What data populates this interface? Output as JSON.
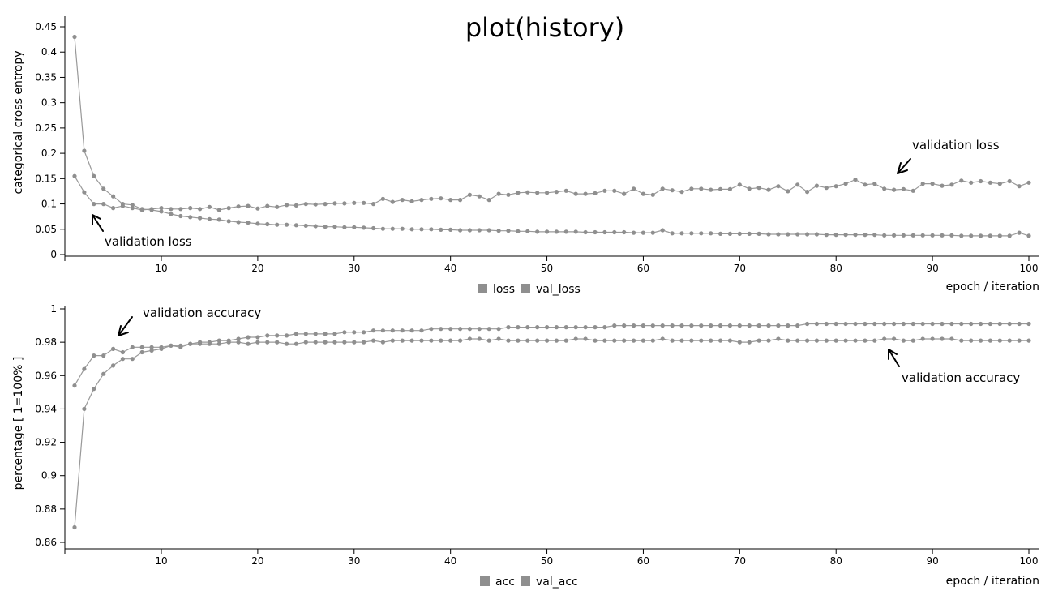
{
  "title": "plot(history)",
  "chart_data": [
    {
      "type": "line",
      "ylabel": "categorical cross entropy",
      "xlabel": "epoch / iteration",
      "xlim": [
        0,
        100
      ],
      "ylim": [
        0,
        0.47
      ],
      "xticks": [
        10,
        20,
        30,
        40,
        50,
        60,
        70,
        80,
        90,
        100
      ],
      "yticks": [
        0,
        0.05,
        0.1,
        0.15,
        0.2,
        0.25,
        0.3,
        0.35,
        0.4,
        0.45
      ],
      "grid": false,
      "legend": "bottom-center",
      "series": [
        {
          "name": "loss",
          "color": "#999999",
          "values": [
            0.43,
            0.205,
            0.155,
            0.13,
            0.115,
            0.1,
            0.098,
            0.09,
            0.088,
            0.085,
            0.08,
            0.076,
            0.074,
            0.072,
            0.07,
            0.069,
            0.066,
            0.064,
            0.063,
            0.061,
            0.06,
            0.059,
            0.059,
            0.058,
            0.057,
            0.056,
            0.055,
            0.055,
            0.054,
            0.054,
            0.053,
            0.052,
            0.051,
            0.051,
            0.051,
            0.05,
            0.05,
            0.05,
            0.049,
            0.049,
            0.048,
            0.048,
            0.048,
            0.048,
            0.047,
            0.047,
            0.046,
            0.046,
            0.045,
            0.045,
            0.045,
            0.045,
            0.045,
            0.044,
            0.044,
            0.044,
            0.044,
            0.044,
            0.043,
            0.043,
            0.043,
            0.048,
            0.042,
            0.042,
            0.042,
            0.042,
            0.042,
            0.041,
            0.041,
            0.041,
            0.041,
            0.041,
            0.04,
            0.04,
            0.04,
            0.04,
            0.04,
            0.04,
            0.039,
            0.039,
            0.039,
            0.039,
            0.039,
            0.039,
            0.038,
            0.038,
            0.038,
            0.038,
            0.038,
            0.038,
            0.038,
            0.038,
            0.037,
            0.037,
            0.037,
            0.037,
            0.037,
            0.037,
            0.043,
            0.037
          ]
        },
        {
          "name": "val_loss",
          "color": "#999999",
          "values": [
            0.155,
            0.123,
            0.1,
            0.1,
            0.092,
            0.096,
            0.092,
            0.088,
            0.09,
            0.092,
            0.09,
            0.09,
            0.092,
            0.09,
            0.094,
            0.088,
            0.092,
            0.095,
            0.096,
            0.091,
            0.096,
            0.094,
            0.098,
            0.097,
            0.1,
            0.099,
            0.1,
            0.101,
            0.101,
            0.102,
            0.102,
            0.1,
            0.11,
            0.104,
            0.108,
            0.105,
            0.108,
            0.11,
            0.111,
            0.108,
            0.108,
            0.118,
            0.115,
            0.108,
            0.12,
            0.118,
            0.122,
            0.123,
            0.122,
            0.122,
            0.124,
            0.126,
            0.12,
            0.12,
            0.121,
            0.126,
            0.126,
            0.12,
            0.13,
            0.12,
            0.118,
            0.13,
            0.127,
            0.124,
            0.13,
            0.13,
            0.128,
            0.129,
            0.129,
            0.138,
            0.13,
            0.132,
            0.128,
            0.135,
            0.125,
            0.138,
            0.124,
            0.136,
            0.132,
            0.135,
            0.14,
            0.148,
            0.138,
            0.14,
            0.13,
            0.128,
            0.129,
            0.126,
            0.14,
            0.14,
            0.136,
            0.138,
            0.146,
            0.142,
            0.145,
            0.142,
            0.14,
            0.145,
            0.135,
            0.142
          ]
        }
      ]
    },
    {
      "type": "line",
      "ylabel": "percentage [ 1=100% ]",
      "xlabel": "epoch / iteration",
      "xlim": [
        0,
        100
      ],
      "ylim": [
        0.855,
        1
      ],
      "xticks": [
        10,
        20,
        30,
        40,
        50,
        60,
        70,
        80,
        90,
        100
      ],
      "yticks": [
        0.86,
        0.88,
        0.9,
        0.92,
        0.94,
        0.96,
        0.98,
        1
      ],
      "grid": false,
      "legend": "bottom-center",
      "series": [
        {
          "name": "acc",
          "color": "#999999",
          "values": [
            0.869,
            0.94,
            0.952,
            0.961,
            0.966,
            0.97,
            0.97,
            0.974,
            0.975,
            0.976,
            0.978,
            0.977,
            0.979,
            0.98,
            0.98,
            0.981,
            0.981,
            0.982,
            0.983,
            0.983,
            0.984,
            0.984,
            0.984,
            0.985,
            0.985,
            0.985,
            0.985,
            0.985,
            0.986,
            0.986,
            0.986,
            0.987,
            0.987,
            0.987,
            0.987,
            0.987,
            0.987,
            0.988,
            0.988,
            0.988,
            0.988,
            0.988,
            0.988,
            0.988,
            0.988,
            0.989,
            0.989,
            0.989,
            0.989,
            0.989,
            0.989,
            0.989,
            0.989,
            0.989,
            0.989,
            0.989,
            0.99,
            0.99,
            0.99,
            0.99,
            0.99,
            0.99,
            0.99,
            0.99,
            0.99,
            0.99,
            0.99,
            0.99,
            0.99,
            0.99,
            0.99,
            0.99,
            0.99,
            0.99,
            0.99,
            0.99,
            0.991,
            0.991,
            0.991,
            0.991,
            0.991,
            0.991,
            0.991,
            0.991,
            0.991,
            0.991,
            0.991,
            0.991,
            0.991,
            0.991,
            0.991,
            0.991,
            0.991,
            0.991,
            0.991,
            0.991,
            0.991,
            0.991,
            0.991,
            0.991
          ]
        },
        {
          "name": "val_acc",
          "color": "#999999",
          "values": [
            0.954,
            0.964,
            0.972,
            0.972,
            0.976,
            0.974,
            0.977,
            0.977,
            0.977,
            0.977,
            0.978,
            0.978,
            0.979,
            0.979,
            0.979,
            0.979,
            0.98,
            0.98,
            0.979,
            0.98,
            0.98,
            0.98,
            0.979,
            0.979,
            0.98,
            0.98,
            0.98,
            0.98,
            0.98,
            0.98,
            0.98,
            0.981,
            0.98,
            0.981,
            0.981,
            0.981,
            0.981,
            0.981,
            0.981,
            0.981,
            0.981,
            0.982,
            0.982,
            0.981,
            0.982,
            0.981,
            0.981,
            0.981,
            0.981,
            0.981,
            0.981,
            0.981,
            0.982,
            0.982,
            0.981,
            0.981,
            0.981,
            0.981,
            0.981,
            0.981,
            0.981,
            0.982,
            0.981,
            0.981,
            0.981,
            0.981,
            0.981,
            0.981,
            0.981,
            0.98,
            0.98,
            0.981,
            0.981,
            0.982,
            0.981,
            0.981,
            0.981,
            0.981,
            0.981,
            0.981,
            0.981,
            0.981,
            0.981,
            0.981,
            0.982,
            0.982,
            0.981,
            0.981,
            0.982,
            0.982,
            0.982,
            0.982,
            0.981,
            0.981,
            0.981,
            0.981,
            0.981,
            0.981,
            0.981,
            0.981
          ]
        }
      ]
    }
  ],
  "annotations": {
    "loss_top": "validation loss",
    "loss_bottom": "validation loss",
    "acc_top": "validation accuracy",
    "acc_bottom": "validation accuracy"
  }
}
